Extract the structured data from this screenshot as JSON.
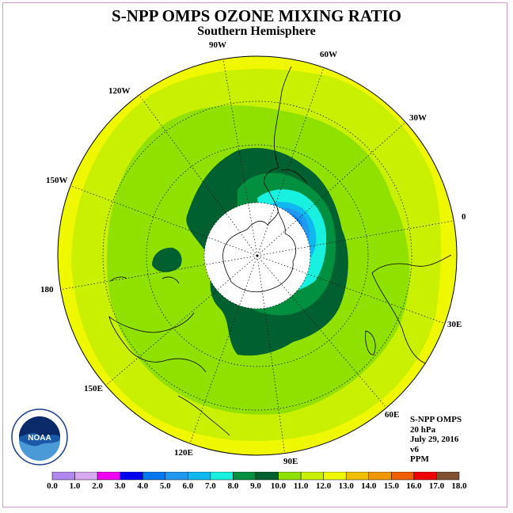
{
  "title": "S-NPP OMPS OZONE MIXING RATIO",
  "subtitle": "Southern Hemisphere",
  "logo_text": "NOAA",
  "info": {
    "instrument": "S-NPP OMPS",
    "level": "20 hPa",
    "date": "July 29, 2016",
    "version": "v6",
    "units": "PPM"
  },
  "longitude_labels": [
    "90W",
    "60W",
    "30W",
    "0",
    "30E",
    "60E",
    "90E",
    "120E",
    "150E",
    "180",
    "150W",
    "120W"
  ],
  "colorbar": {
    "labels": [
      "0.0",
      "1.0",
      "2.0",
      "3.0",
      "4.0",
      "5.0",
      "6.0",
      "7.0",
      "8.0",
      "9.0",
      "10.0",
      "11.0",
      "12.0",
      "13.0",
      "14.0",
      "15.0",
      "16.0",
      "17.0",
      "18.0"
    ],
    "colors": [
      "#b088f0",
      "#d8a8f0",
      "#f000f0",
      "#0000f0",
      "#0078f0",
      "#2098f0",
      "#10b8f0",
      "#18f0e0",
      "#009040",
      "#006030",
      "#90e000",
      "#c8f000",
      "#f0f800",
      "#f0c000",
      "#f09800",
      "#f06000",
      "#f00000",
      "#805030"
    ]
  }
}
